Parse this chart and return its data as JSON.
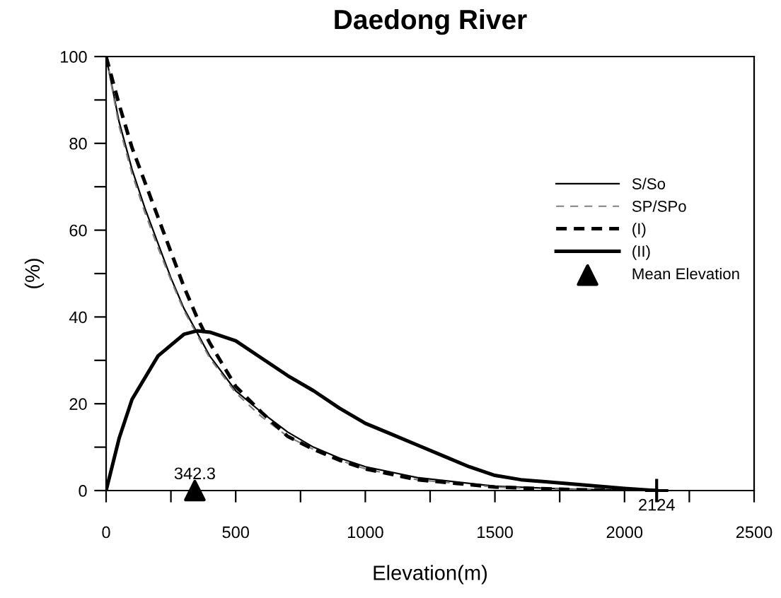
{
  "chart_data": {
    "type": "line",
    "title": "Daedong River",
    "xlabel": "Elevation(m)",
    "ylabel": "(%)",
    "xlim": [
      0,
      2500
    ],
    "ylim": [
      0,
      100
    ],
    "xticks": [
      0,
      {
        "value": 250,
        "label": null
      },
      500,
      {
        "value": 750,
        "label": null
      },
      1000,
      {
        "value": 1250,
        "label": null
      },
      1500,
      {
        "value": 1750,
        "label": null
      },
      2000,
      {
        "value": 2250,
        "label": null
      },
      2500
    ],
    "yticks": [
      0,
      {
        "value": 10,
        "label": null
      },
      20,
      {
        "value": 30,
        "label": null
      },
      40,
      {
        "value": 50,
        "label": null
      },
      60,
      {
        "value": 70,
        "label": null
      },
      80,
      {
        "value": 90,
        "label": null
      },
      100
    ],
    "grid": false,
    "legend": "right",
    "marker": "none",
    "series": [
      {
        "name": "S/So",
        "color": "#000000",
        "line_style": "solid",
        "x": [
          0,
          50,
          100,
          150,
          200,
          250,
          300,
          350,
          400,
          500,
          600,
          700,
          800,
          900,
          1000,
          1200,
          1500,
          1800,
          2124
        ],
        "values": [
          100,
          85,
          74,
          65,
          57,
          49,
          42,
          36.5,
          31,
          23,
          18,
          13.5,
          10,
          7.5,
          5.5,
          3,
          1,
          0.3,
          0
        ]
      },
      {
        "name": "SP/SPo",
        "color": "#808080",
        "line_style": "dashed",
        "x": [
          0,
          50,
          100,
          150,
          200,
          250,
          300,
          350,
          400,
          500,
          600,
          700,
          800,
          900,
          1000,
          1200,
          1500,
          1800,
          2124
        ],
        "values": [
          100,
          84,
          73,
          64,
          56,
          48.5,
          41.5,
          36,
          30.5,
          22.5,
          17,
          12.5,
          9.5,
          7,
          5,
          2.5,
          0.8,
          0.2,
          0
        ]
      },
      {
        "name": "(I)",
        "color": "#000000",
        "line_style": "dashed",
        "x": [
          0,
          50,
          100,
          150,
          200,
          250,
          300,
          350,
          400,
          500,
          600,
          700,
          800,
          900,
          1000,
          1200,
          1500,
          1800,
          2124
        ],
        "values": [
          100,
          89,
          79,
          71,
          63,
          55,
          47,
          40,
          34,
          24,
          18,
          12.5,
          9.5,
          7,
          5,
          2.5,
          0.8,
          0.2,
          0
        ]
      },
      {
        "name": "(II)",
        "color": "#000000",
        "line_style": "solid",
        "x": [
          0,
          50,
          100,
          200,
          300,
          350,
          400,
          500,
          600,
          700,
          800,
          900,
          1000,
          1100,
          1200,
          1300,
          1400,
          1500,
          1600,
          1800,
          2000,
          2124
        ],
        "values": [
          0,
          12,
          21,
          31,
          36,
          36.8,
          36.5,
          34.5,
          30.5,
          26.5,
          23,
          19,
          15.5,
          13,
          10.5,
          8,
          5.5,
          3.5,
          2.5,
          1.5,
          0.5,
          0
        ]
      },
      {
        "name": "Mean Elevation",
        "type": "scatter",
        "marker": "triangle",
        "color": "#000000",
        "x": [
          342.3
        ],
        "values": [
          0
        ]
      },
      {
        "type": "scatter",
        "marker": "cross",
        "color": "#000000",
        "x": [
          2124
        ],
        "values": [
          0
        ]
      }
    ],
    "annotations": [
      {
        "text": "342.3",
        "x": 342.3,
        "y": 0
      },
      {
        "text": "2124",
        "x": 2124,
        "y": 0
      }
    ]
  }
}
